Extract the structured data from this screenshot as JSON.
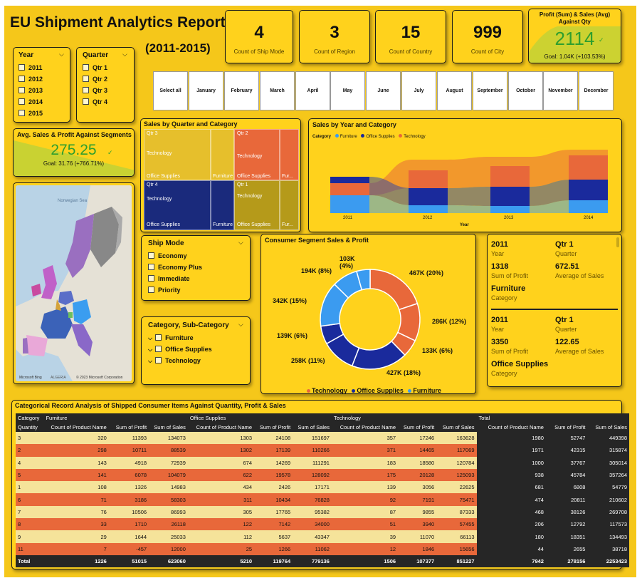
{
  "report": {
    "title": "EU Shipment Analytics Report",
    "subtitle": "(2011-2015)"
  },
  "colors": {
    "technology": "#e8683a",
    "office_supplies": "#1a2a9c",
    "furniture": "#3b9bf0",
    "background": "#f5c71a"
  },
  "kpis": [
    {
      "value": "4",
      "label": "Count of Ship Mode"
    },
    {
      "value": "3",
      "label": "Count of Region"
    },
    {
      "value": "15",
      "label": "Count of Country"
    },
    {
      "value": "999",
      "label": "Count of City"
    }
  ],
  "profit_kpi": {
    "title": "Profit (Sum) & Sales (Avg) Against Qty",
    "value": "2114",
    "goal": "Goal: 1.04K (+103.53%)"
  },
  "segment_kpi": {
    "title": "Avg. Sales & Profit Against Segments",
    "value": "275.25",
    "goal": "Goal: 31.76 (+766.71%)"
  },
  "year_slicer": {
    "title": "Year",
    "items": [
      "2011",
      "2012",
      "2013",
      "2014",
      "2015"
    ]
  },
  "quarter_slicer": {
    "title": "Quarter",
    "items": [
      "Qtr 1",
      "Qtr 2",
      "Qtr 3",
      "Qtr 4"
    ]
  },
  "months": [
    "Select all",
    "January",
    "February",
    "March",
    "April",
    "May",
    "June",
    "July",
    "August",
    "September",
    "October",
    "November",
    "December"
  ],
  "treemap": {
    "title": "Sales by Quarter and Category",
    "q3": {
      "name": "Qtr 3",
      "tech": "Technology",
      "office": "Office Supplies",
      "furn": "Furniture"
    },
    "q2": {
      "name": "Qtr 2",
      "tech": "Technology",
      "office": "Office Supplies",
      "furn": "Fur..."
    },
    "q4": {
      "name": "Qtr 4",
      "tech": "Technology",
      "office": "Office Supplies",
      "furn": "Furniture"
    },
    "q1": {
      "name": "Qtr 1",
      "tech": "Technology",
      "office": "Office Supplies",
      "furn": "Fur..."
    }
  },
  "ribbon": {
    "title": "Sales by Year and Category",
    "legend_label": "Category",
    "legend": [
      "Furniture",
      "Office Supplies",
      "Technology"
    ],
    "xaxis": [
      "2011",
      "2012",
      "2013",
      "2014"
    ],
    "xlabel": "Year"
  },
  "map": {
    "sea_label": "Norwegian Sea",
    "attribution": "© 2023 Microsoft Corporation",
    "bing": "Microsoft Bing",
    "country_label": "ALGERIA"
  },
  "ship_mode": {
    "title": "Ship Mode",
    "items": [
      "Economy",
      "Economy Plus",
      "Immediate",
      "Priority"
    ]
  },
  "category_slicer": {
    "title": "Category, Sub-Category",
    "items": [
      "Furniture",
      "Office Supplies",
      "Technology"
    ]
  },
  "donut": {
    "title": "Consumer Segment Sales & Profit",
    "legend": [
      "Technology",
      "Office Supplies",
      "Furniture"
    ],
    "labels": [
      "467K (20%)",
      "286K (12%)",
      "133K (6%)",
      "427K (18%)",
      "258K (11%)",
      "139K (6%)",
      "342K (15%)",
      "194K (8%)",
      "103K (4%)"
    ]
  },
  "multirow": [
    {
      "year": "2011",
      "year_lbl": "Year",
      "qtr": "Qtr 1",
      "qtr_lbl": "Quarter",
      "profit": "1318",
      "profit_lbl": "Sum of Profit",
      "avg": "672.51",
      "avg_lbl": "Average of Sales",
      "cat": "Furniture",
      "cat_lbl": "Category"
    },
    {
      "year": "2011",
      "year_lbl": "Year",
      "qtr": "Qtr 1",
      "qtr_lbl": "Quarter",
      "profit": "3350",
      "profit_lbl": "Sum of Profit",
      "avg": "122.65",
      "avg_lbl": "Average of Sales",
      "cat": "Office Supplies",
      "cat_lbl": "Category"
    }
  ],
  "matrix": {
    "title": "Categorical Record Analysis of Shipped Consumer Items Against Quantity, Profit & Sales",
    "header1": [
      "Category",
      "Furniture",
      "Office Supplies",
      "Technology",
      "Total"
    ],
    "header2": [
      "Quantity",
      "Count of Product Name",
      "Sum of Profit",
      "Sum of Sales",
      "Count of Product Name",
      "Sum of Profit",
      "Sum of Sales",
      "Count of Product Name",
      "Sum of Profit",
      "Sum of Sales",
      "Count of Product Name",
      "Sum of Profit",
      "Sum of Sales"
    ],
    "rows": [
      [
        "3",
        "320",
        "11393",
        "134073",
        "1303",
        "24108",
        "151697",
        "357",
        "17246",
        "163628",
        "1980",
        "52747",
        "449398"
      ],
      [
        "2",
        "298",
        "10711",
        "88539",
        "1302",
        "17139",
        "110266",
        "371",
        "14465",
        "117069",
        "1971",
        "42315",
        "315874"
      ],
      [
        "4",
        "143",
        "4918",
        "72939",
        "674",
        "14269",
        "111291",
        "183",
        "18580",
        "120784",
        "1000",
        "37767",
        "305014"
      ],
      [
        "5",
        "141",
        "6078",
        "104079",
        "622",
        "19578",
        "128092",
        "175",
        "20128",
        "125093",
        "938",
        "45784",
        "357264"
      ],
      [
        "1",
        "108",
        "1326",
        "14983",
        "434",
        "2426",
        "17171",
        "139",
        "3056",
        "22625",
        "681",
        "6808",
        "54779"
      ],
      [
        "6",
        "71",
        "3186",
        "58303",
        "311",
        "10434",
        "76828",
        "92",
        "7191",
        "75471",
        "474",
        "20811",
        "210602"
      ],
      [
        "7",
        "76",
        "10506",
        "86993",
        "305",
        "17765",
        "95382",
        "87",
        "9855",
        "87333",
        "468",
        "38126",
        "269708"
      ],
      [
        "8",
        "33",
        "1710",
        "26118",
        "122",
        "7142",
        "34000",
        "51",
        "3940",
        "57455",
        "206",
        "12792",
        "117573"
      ],
      [
        "9",
        "29",
        "1644",
        "25033",
        "112",
        "5637",
        "43347",
        "39",
        "11070",
        "66113",
        "180",
        "18351",
        "134493"
      ],
      [
        "11",
        "7",
        "-457",
        "12000",
        "25",
        "1266",
        "11062",
        "12",
        "1846",
        "15656",
        "44",
        "2655",
        "38718"
      ]
    ],
    "total": [
      "Total",
      "1226",
      "51015",
      "623060",
      "5210",
      "119764",
      "779136",
      "1506",
      "107377",
      "851227",
      "7942",
      "278156",
      "2253423"
    ]
  }
}
